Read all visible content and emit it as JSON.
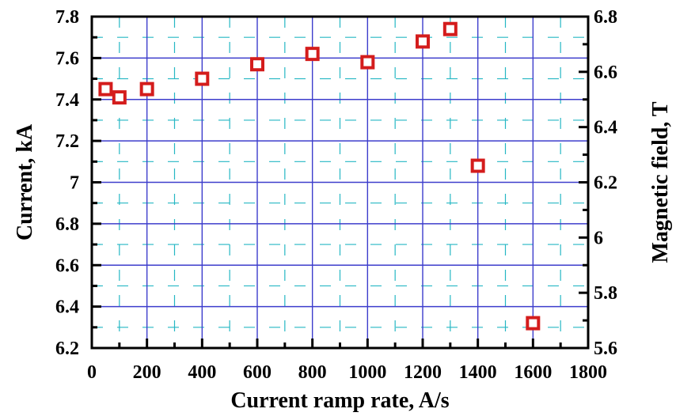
{
  "chart_data": {
    "type": "scatter",
    "xlabel": "Current ramp rate, A/s",
    "ylabel": "Current, kA",
    "y2label": "Magnetic field, T",
    "xlim": [
      0,
      1800
    ],
    "ylim": [
      6.2,
      7.8
    ],
    "y2lim": [
      5.6,
      6.8
    ],
    "x_ticks": [
      "0",
      "200",
      "400",
      "600",
      "800",
      "1000",
      "1200",
      "1400",
      "1600",
      "1800"
    ],
    "y_ticks": [
      "6.2",
      "6.4",
      "6.6",
      "6.8",
      "7",
      "7.2",
      "7.4",
      "7.6",
      "7.8"
    ],
    "y2_ticks": [
      "5.6",
      "5.8",
      "6",
      "6.2",
      "6.4",
      "6.6",
      "6.8"
    ],
    "grid": true,
    "marker": "open-square",
    "colors": {
      "major_grid": "#3d3dcc",
      "minor_grid": "#26b7c4",
      "marker_edge": "#d41c1c",
      "marker_fill": "#ffffff",
      "axis": "#000000"
    },
    "series": [
      {
        "x": [
          50,
          100,
          200,
          400,
          600,
          800,
          1000,
          1200,
          1300,
          1400,
          1600
        ],
        "y": [
          7.45,
          7.41,
          7.45,
          7.5,
          7.57,
          7.62,
          7.58,
          7.68,
          7.74,
          7.08,
          6.32
        ]
      }
    ]
  }
}
